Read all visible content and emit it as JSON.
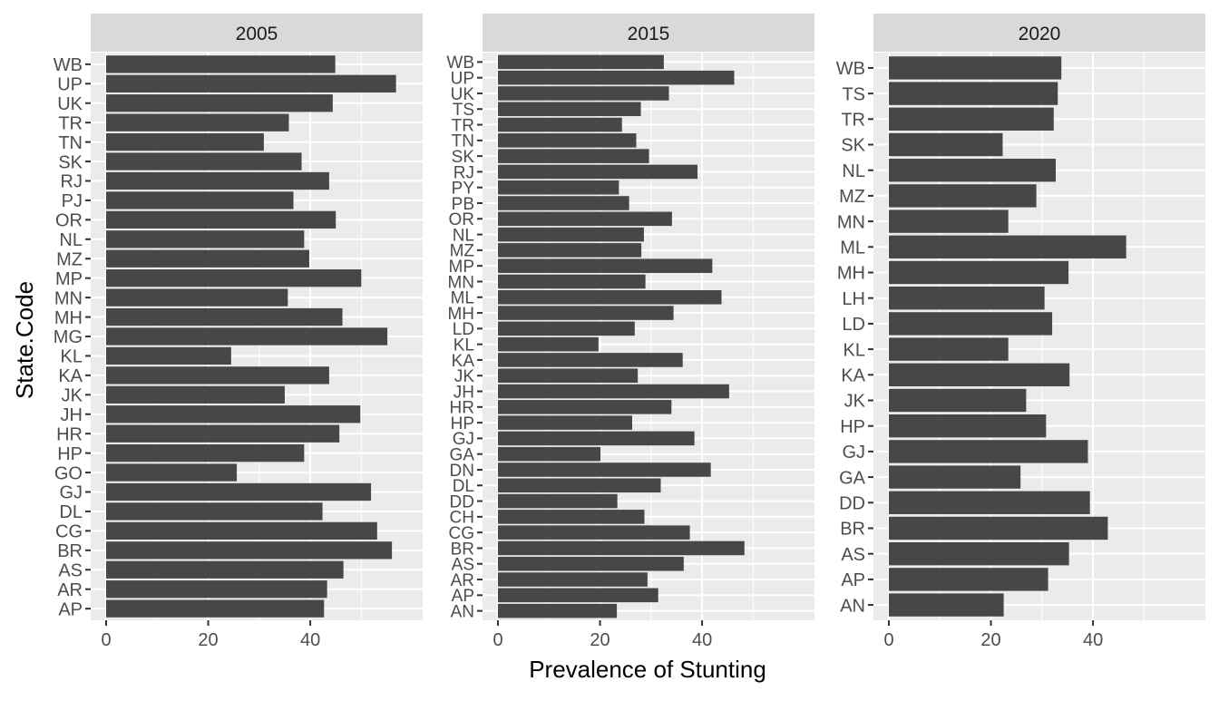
{
  "chart_data": {
    "type": "bar",
    "orientation": "horizontal",
    "xlabel": "Prevalence of Stunting",
    "ylabel": "State.Code",
    "xlim": [
      0,
      59
    ],
    "xticks": [
      0,
      20,
      40
    ],
    "grid": true,
    "legend": "none",
    "colors": {
      "bar": "#474747",
      "panel_bg": "#ebebeb",
      "strip_bg": "#d9d9d9",
      "grid": "#ffffff",
      "axis_text": "#4d4d4d",
      "axis_title": "#000000"
    },
    "facets": [
      {
        "title": "2005",
        "categories": [
          "AP",
          "AR",
          "AS",
          "BR",
          "CG",
          "DL",
          "GJ",
          "GO",
          "HP",
          "HR",
          "JH",
          "JK",
          "KA",
          "KL",
          "MG",
          "MH",
          "MN",
          "MP",
          "MZ",
          "NL",
          "OR",
          "PJ",
          "RJ",
          "SK",
          "TN",
          "TR",
          "UK",
          "UP",
          "WB"
        ],
        "values": [
          42.7,
          43.3,
          46.5,
          56.0,
          53.1,
          42.4,
          51.9,
          25.6,
          38.8,
          45.7,
          49.8,
          35.0,
          43.7,
          24.5,
          55.1,
          46.3,
          35.6,
          50.0,
          39.8,
          38.8,
          45.0,
          36.7,
          43.7,
          38.3,
          30.9,
          35.8,
          44.4,
          56.8,
          44.9
        ]
      },
      {
        "title": "2015",
        "categories": [
          "AN",
          "AP",
          "AR",
          "AS",
          "BR",
          "CG",
          "CH",
          "DD",
          "DL",
          "DN",
          "GA",
          "GJ",
          "HP",
          "HR",
          "JH",
          "JK",
          "KA",
          "KL",
          "LD",
          "MH",
          "ML",
          "MN",
          "MP",
          "MZ",
          "NL",
          "OR",
          "PB",
          "PY",
          "RJ",
          "SK",
          "TN",
          "TR",
          "TS",
          "UK",
          "UP",
          "WB"
        ],
        "values": [
          23.3,
          31.4,
          29.3,
          36.4,
          48.3,
          37.6,
          28.7,
          23.4,
          31.9,
          41.7,
          20.1,
          38.5,
          26.3,
          34.0,
          45.3,
          27.4,
          36.2,
          19.7,
          26.8,
          34.4,
          43.8,
          28.9,
          42.0,
          28.1,
          28.6,
          34.1,
          25.7,
          23.7,
          39.1,
          29.6,
          27.1,
          24.3,
          28.0,
          33.5,
          46.3,
          32.5
        ]
      },
      {
        "title": "2020",
        "categories": [
          "AN",
          "AP",
          "AS",
          "BR",
          "DD",
          "GA",
          "GJ",
          "HP",
          "JK",
          "KA",
          "KL",
          "LD",
          "LH",
          "MH",
          "ML",
          "MN",
          "MZ",
          "NL",
          "SK",
          "TR",
          "TS",
          "WB"
        ],
        "values": [
          22.5,
          31.2,
          35.3,
          42.9,
          39.4,
          25.8,
          39.0,
          30.8,
          26.9,
          35.4,
          23.4,
          32.0,
          30.5,
          35.2,
          46.5,
          23.4,
          28.9,
          32.7,
          22.3,
          32.3,
          33.1,
          33.8
        ]
      }
    ]
  }
}
